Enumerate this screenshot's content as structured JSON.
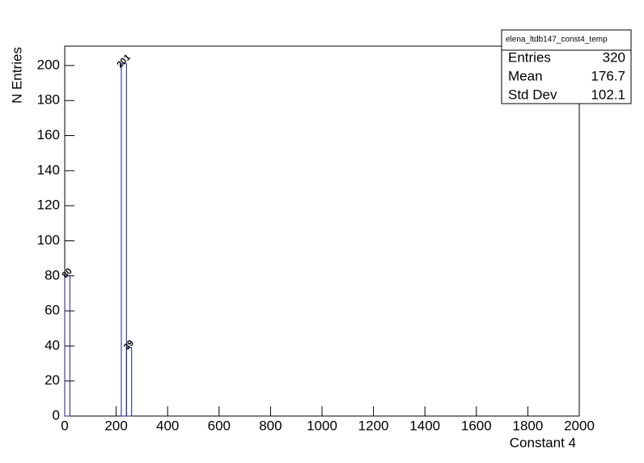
{
  "chart_data": {
    "type": "histogram",
    "x_label": "Constant 4",
    "y_label": "N Entries",
    "bins": [
      0,
      20,
      220,
      240,
      260,
      2000
    ],
    "counts": [
      80,
      0,
      201,
      39,
      0
    ],
    "color": "#1c1c8e",
    "xlim": [
      0,
      2000
    ],
    "xticks": [
      0,
      200,
      400,
      600,
      800,
      1000,
      1200,
      1400,
      1600,
      1800,
      2000
    ],
    "ylim": [
      0,
      211.05
    ],
    "yticks": [
      0,
      20,
      40,
      60,
      80,
      100,
      120,
      140,
      160,
      180,
      200
    ],
    "stats": {
      "title": "elena_ltdb147_const4_temp",
      "rows": [
        {
          "label": "Entries",
          "value": 320
        },
        {
          "label": "Mean",
          "value": 176.7
        },
        {
          "label": "Std Dev",
          "value": 102.1
        }
      ]
    }
  }
}
